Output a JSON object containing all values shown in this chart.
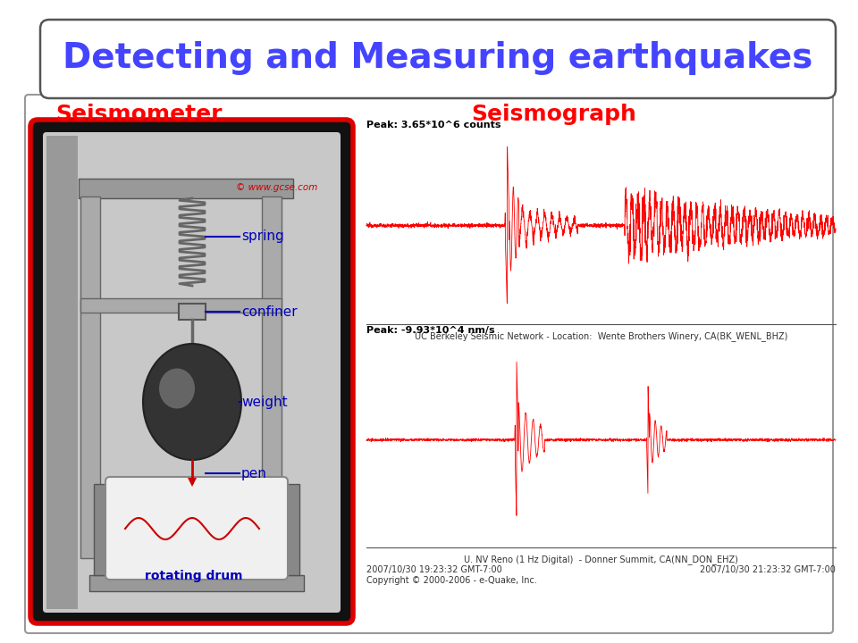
{
  "title": "Detecting and Measuring earthquakes",
  "title_color": "#4444FF",
  "title_fontsize": 28,
  "label_seismometer": "Seismometer",
  "label_seismograph": "Seismograph",
  "label_color": "#FF0000",
  "label_fontsize": 18,
  "bg_color": "#FFFFFF",
  "seismograph_text_top": "Peak: 3.65*10^6 counts",
  "seismograph_text_bottom": "Peak: -9.93*10^4 nm/s",
  "seismograph_caption_top": "UC Berkeley Seismic Network - Location:  Wente Brothers Winery, CA(BK_WENL_BHZ)",
  "seismograph_caption_bottom": "U. NV Reno (1 Hz Digital)  - Donner Summit, CA(NN_DON_EHZ)",
  "seismograph_date_left": "2007/10/30 19:23:32 GMT-7:00",
  "seismograph_date_right": "2007/10/30 21:23:32 GMT-7:00",
  "seismograph_copyright": "Copyright © 2000-2006 - e-Quake, Inc.",
  "label_spring": "spring",
  "label_confiner": "confiner",
  "label_weight": "weight",
  "label_pen": "pen",
  "label_drum": "rotating drum",
  "component_label_color": "#0000BB",
  "gcse_text": "© www.gcse.com"
}
